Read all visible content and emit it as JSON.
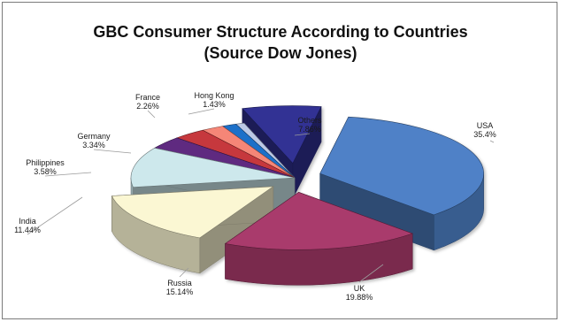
{
  "chart_data": {
    "type": "pie",
    "title": "GBC Consumer Structure According to Countries",
    "subtitle": "(Source Dow Jones)",
    "slices": [
      {
        "label": "USA",
        "value_label": "35.4%",
        "value": 35.4,
        "color": "#4f81c7",
        "exploded": true
      },
      {
        "label": "UK",
        "value_label": "19.88%",
        "value": 19.88,
        "color": "#a93a6c",
        "exploded": true
      },
      {
        "label": "Russia",
        "value_label": "15.14%",
        "value": 15.14,
        "color": "#fbf7d3",
        "exploded": true
      },
      {
        "label": "India",
        "value_label": "11.44%",
        "value": 11.44,
        "color": "#cde8ec",
        "exploded": false
      },
      {
        "label": "Philippines",
        "value_label": "3.58%",
        "value": 3.58,
        "color": "#5e2b80",
        "exploded": false
      },
      {
        "label": "Germany",
        "value_label": "3.34%",
        "value": 3.34,
        "color": "#c6373d",
        "exploded": false
      },
      {
        "label": "France",
        "value_label": "2.26%",
        "value": 2.26,
        "color": "#f58677",
        "exploded": false
      },
      {
        "label": "Hong Kong",
        "value_label": "1.43%",
        "value": 1.43,
        "color": "#1f70c9",
        "exploded": false
      },
      {
        "label": "",
        "value_label": "",
        "value": 0.86,
        "color": "#bcc9e6",
        "exploded": false
      },
      {
        "label": "Others",
        "value_label": "7.86%",
        "value": 7.86,
        "color": "#303194",
        "exploded": true
      }
    ],
    "legend": "none",
    "style": "3d-exploded"
  }
}
